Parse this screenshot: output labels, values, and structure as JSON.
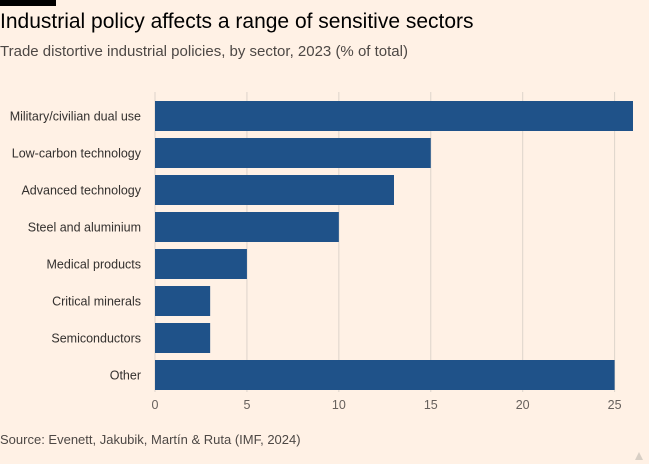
{
  "header": {
    "title": "Industrial policy affects a range of sensitive sectors",
    "subtitle": "Trade distortive industrial policies, by sector, 2023 (% of total)"
  },
  "footer": {
    "source": "Source: Evenett, Jakubik, Martín & Ruta (IMF, 2024)"
  },
  "colors": {
    "bar": "#1f5289",
    "grid": "#ddd4cb",
    "background": "#fff1e5"
  },
  "chart_data": {
    "type": "bar",
    "orientation": "horizontal",
    "title": "Industrial policy affects a range of sensitive sectors",
    "subtitle": "Trade distortive industrial policies, by sector, 2023 (% of total)",
    "categories": [
      "Military/civilian dual use",
      "Low-carbon technology",
      "Advanced technology",
      "Steel and aluminium",
      "Medical products",
      "Critical minerals",
      "Semiconductors",
      "Other"
    ],
    "values": [
      26,
      15,
      13,
      10,
      5,
      3,
      3,
      25
    ],
    "xlabel": "",
    "ylabel": "",
    "xlim": [
      0,
      26
    ],
    "xticks": [
      0,
      5,
      10,
      15,
      20,
      25
    ],
    "xtick_labels": [
      "0",
      "5",
      "10",
      "15",
      "20",
      "25"
    ],
    "grid": true
  }
}
